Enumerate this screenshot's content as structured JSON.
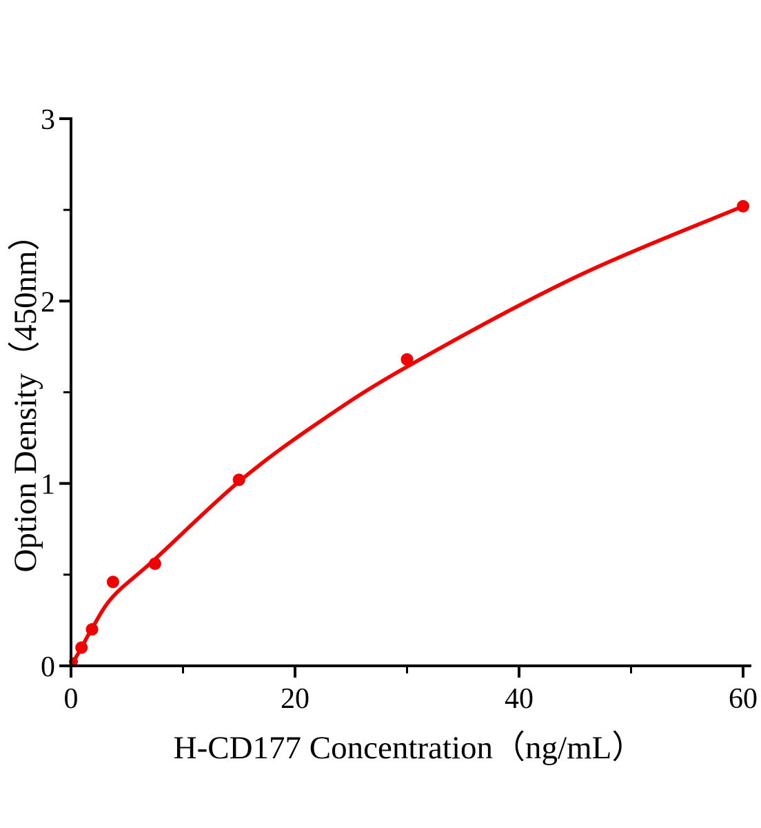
{
  "figure": {
    "background": "#ffffff",
    "axis_color": "#000000",
    "accent_red": "#F20000"
  },
  "chart_data": {
    "type": "scatter",
    "title": "",
    "xlabel": "H-CD177 Concentration（ng/mL）",
    "ylabel": "Option Density（450nm）",
    "xlim": [
      0,
      60.7
    ],
    "ylim": [
      0,
      3
    ],
    "grid": false,
    "legend": false,
    "x_major_ticks": [
      0,
      20,
      40,
      60
    ],
    "x_minor_ticks": [
      10,
      30,
      50
    ],
    "y_major_ticks": [
      0,
      1,
      2,
      3
    ],
    "y_minor_ticks": [
      0.5,
      1.5,
      2.5
    ],
    "series": [
      {
        "name": "standard_curve",
        "marker": "circle",
        "marker_color": "#F20000",
        "line_color": "#F20000",
        "points": [
          [
            0,
            0
          ],
          [
            0.94,
            0.1
          ],
          [
            1.88,
            0.2
          ],
          [
            3.75,
            0.46
          ],
          [
            7.5,
            0.56
          ],
          [
            15,
            1.02
          ],
          [
            30,
            1.68
          ],
          [
            60,
            2.52
          ]
        ],
        "fit_curve_samples": [
          [
            0,
            0
          ],
          [
            0.94,
            0.1
          ],
          [
            1.88,
            0.205
          ],
          [
            3.75,
            0.38
          ],
          [
            7.5,
            0.585
          ],
          [
            15,
            1.01
          ],
          [
            22,
            1.33
          ],
          [
            30,
            1.64
          ],
          [
            45,
            2.13
          ],
          [
            60,
            2.52
          ]
        ]
      }
    ]
  }
}
